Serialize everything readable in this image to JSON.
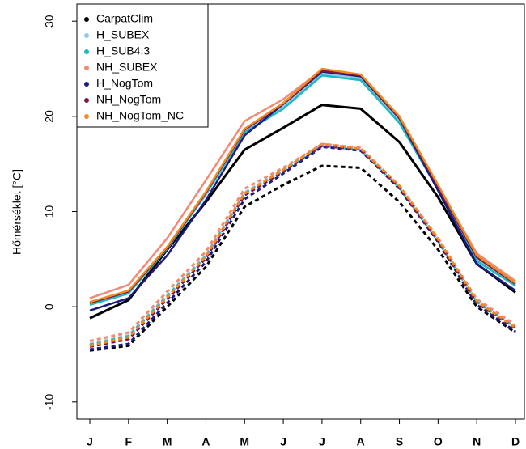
{
  "chart_data": {
    "type": "line",
    "y_label": "Hőmérséklet [°C]",
    "categories": [
      "J",
      "F",
      "M",
      "A",
      "M",
      "J",
      "J",
      "A",
      "S",
      "O",
      "N",
      "D"
    ],
    "ylim": [
      -11.8,
      31.8
    ],
    "yticks": [
      -10,
      0,
      10,
      20,
      30
    ],
    "grid": false,
    "legend": "top-left",
    "series": [
      {
        "name": "CarpatClim",
        "color": "#000000",
        "values": [
          -1.2,
          0.7,
          6.0,
          11.0,
          16.5,
          18.8,
          21.2,
          20.8,
          17.3,
          11.5,
          4.5,
          1.5
        ],
        "dashed_values": [
          -4.6,
          -4.1,
          0.0,
          4.2,
          10.5,
          12.8,
          14.8,
          14.6,
          11.0,
          6.0,
          0.0,
          -2.7
        ]
      },
      {
        "name": "H_SUBEX",
        "color": "#8ecae6",
        "values": [
          0.3,
          1.5,
          6.2,
          12.0,
          18.5,
          21.0,
          24.5,
          24.0,
          19.5,
          12.5,
          5.0,
          2.3
        ],
        "dashed_values": [
          -3.9,
          -3.0,
          1.2,
          5.4,
          12.0,
          14.4,
          17.0,
          16.6,
          12.6,
          7.0,
          0.6,
          -2.1
        ]
      },
      {
        "name": "H_SUB4.3",
        "color": "#20b8c0",
        "values": [
          0.2,
          1.4,
          6.1,
          11.8,
          18.3,
          20.8,
          24.3,
          23.8,
          19.3,
          12.3,
          4.8,
          2.2
        ],
        "dashed_values": [
          -4.0,
          -3.1,
          1.1,
          5.3,
          11.9,
          14.3,
          16.9,
          16.5,
          12.5,
          6.9,
          0.5,
          -2.2
        ]
      },
      {
        "name": "NH_SUBEX",
        "color": "#f08a78",
        "values": [
          0.9,
          2.3,
          7.2,
          13.3,
          19.5,
          21.8,
          24.9,
          24.3,
          19.8,
          12.7,
          5.6,
          2.7
        ],
        "dashed_values": [
          -3.6,
          -2.7,
          1.6,
          5.8,
          12.4,
          14.6,
          17.1,
          16.7,
          12.7,
          7.2,
          0.8,
          -1.9
        ]
      },
      {
        "name": "H_NogTom",
        "color": "#1a1a80",
        "values": [
          -0.4,
          0.9,
          5.4,
          11.2,
          18.0,
          21.3,
          24.7,
          24.2,
          19.8,
          12.2,
          4.5,
          1.7
        ],
        "dashed_values": [
          -4.5,
          -3.9,
          0.4,
          4.7,
          11.3,
          14.0,
          16.8,
          16.4,
          12.4,
          6.8,
          0.2,
          -2.6
        ]
      },
      {
        "name": "NH_NogTom",
        "color": "#7a1a40",
        "values": [
          0.4,
          1.6,
          6.2,
          12.0,
          18.6,
          21.3,
          24.8,
          24.3,
          19.8,
          12.6,
          5.2,
          2.4
        ],
        "dashed_values": [
          -4.2,
          -3.4,
          0.8,
          5.1,
          11.7,
          14.2,
          16.9,
          16.5,
          12.5,
          6.9,
          0.4,
          -2.3
        ]
      },
      {
        "name": "NH_NogTom_NC",
        "color": "#f08a24",
        "values": [
          0.5,
          1.7,
          6.3,
          12.1,
          18.7,
          21.4,
          25.0,
          24.4,
          20.0,
          12.8,
          5.4,
          2.5
        ],
        "dashed_values": [
          -4.1,
          -3.2,
          1.0,
          5.3,
          11.9,
          14.4,
          17.1,
          16.6,
          12.7,
          7.1,
          0.6,
          -2.2
        ]
      }
    ]
  }
}
